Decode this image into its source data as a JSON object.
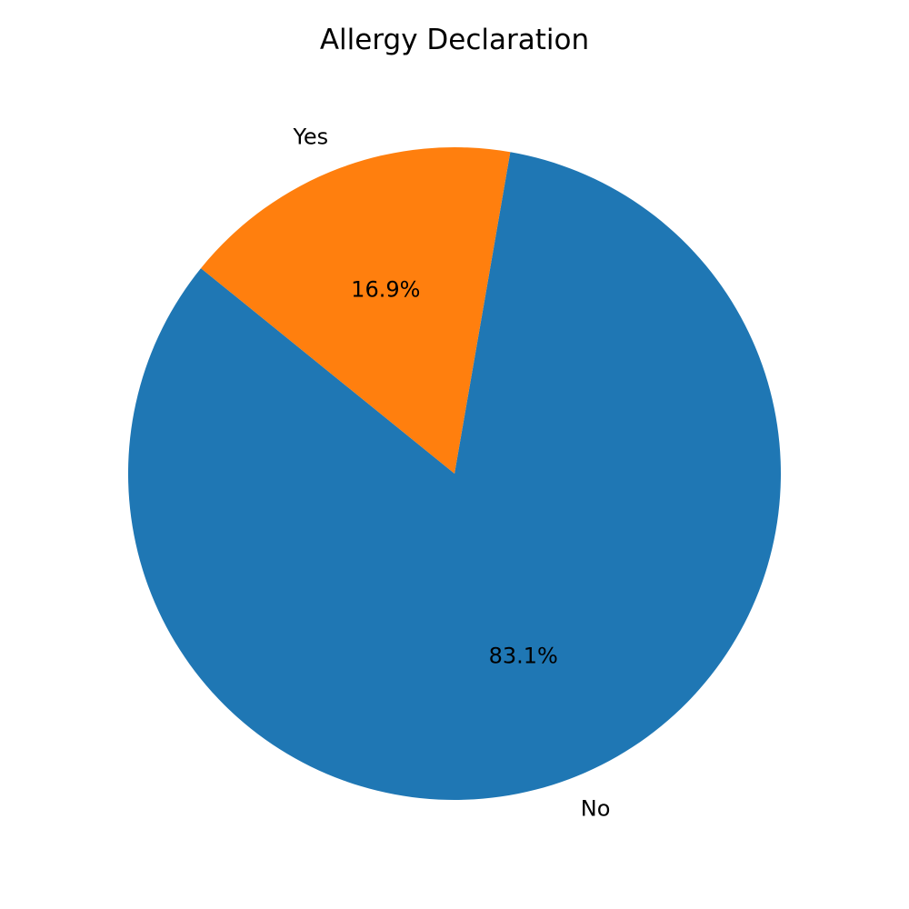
{
  "chart_data": {
    "type": "pie",
    "title": "Allergy Declaration",
    "labels": [
      "No",
      "Yes"
    ],
    "values": [
      83.1,
      16.9
    ],
    "value_labels": [
      "83.1%",
      "16.9%"
    ],
    "colors": [
      "#1f77b4",
      "#ff7f0e"
    ]
  }
}
